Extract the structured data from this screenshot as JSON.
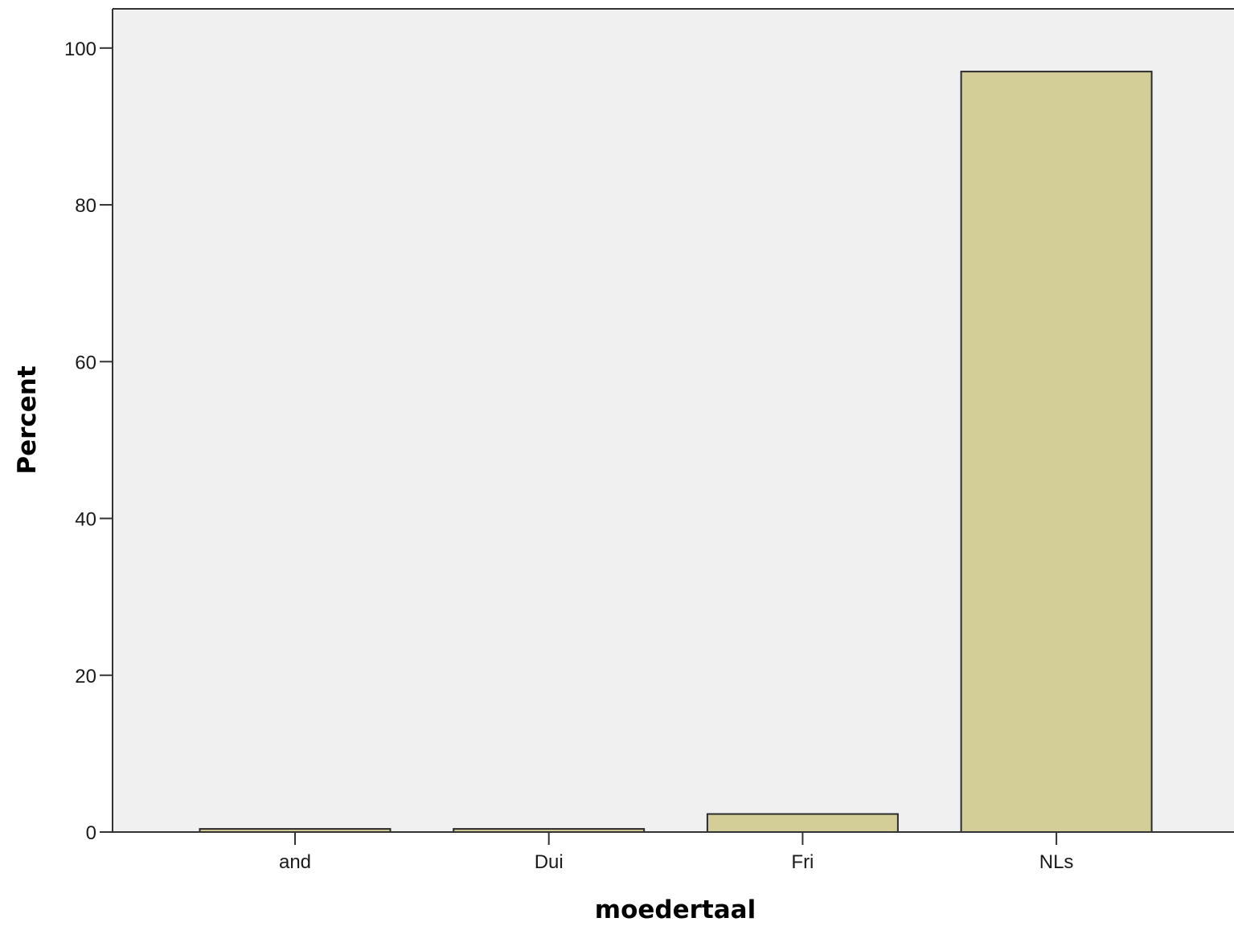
{
  "chart_data": {
    "type": "bar",
    "categories": [
      "and",
      "Dui",
      "Fri",
      "NLs"
    ],
    "values": [
      0.4,
      0.4,
      2.3,
      97.0
    ],
    "xlabel": "moedertaal",
    "ylabel": "Percent",
    "ylim": [
      0,
      105
    ],
    "yticks": [
      0,
      20,
      40,
      60,
      80,
      100
    ],
    "grid": false,
    "legend": "none",
    "colors": {
      "plot_background": "#f0f0f0",
      "bar_fill": "#d3ce97",
      "bar_stroke": "#2b2b2b",
      "axis": "#333333"
    }
  }
}
